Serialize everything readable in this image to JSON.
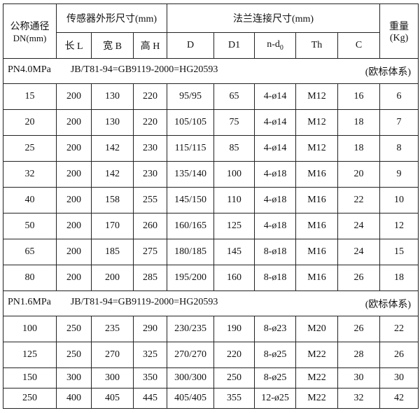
{
  "header": {
    "dn": "公称通径",
    "dn_unit": "DN(mm)",
    "sensor": "传感器外形尺寸(mm)",
    "flange": "法兰连接尺寸(mm)",
    "weight": "重量",
    "weight_unit": "(Kg)",
    "cols": [
      "长 L",
      "宽 B",
      "高 H",
      "D",
      "D1",
      "n-d",
      "Th",
      "C"
    ],
    "nd_sub": "0"
  },
  "sections": [
    {
      "pressure": "PN4.0MPa",
      "standard": "JB/T81-94=GB9119-2000=HG20593",
      "system": "(欧标体系)",
      "rows": [
        [
          "15",
          "200",
          "130",
          "220",
          "95/95",
          "65",
          "4-ø14",
          "M12",
          "16",
          "6"
        ],
        [
          "20",
          "200",
          "130",
          "220",
          "105/105",
          "75",
          "4-ø14",
          "M12",
          "18",
          "7"
        ],
        [
          "25",
          "200",
          "142",
          "230",
          "115/115",
          "85",
          "4-ø14",
          "M12",
          "18",
          "8"
        ],
        [
          "32",
          "200",
          "142",
          "230",
          "135/140",
          "100",
          "4-ø18",
          "M16",
          "20",
          "9"
        ],
        [
          "40",
          "200",
          "158",
          "255",
          "145/150",
          "110",
          "4-ø18",
          "M16",
          "22",
          "10"
        ],
        [
          "50",
          "200",
          "170",
          "260",
          "160/165",
          "125",
          "4-ø18",
          "M16",
          "24",
          "12"
        ],
        [
          "65",
          "200",
          "185",
          "275",
          "180/185",
          "145",
          "8-ø18",
          "M16",
          "24",
          "15"
        ],
        [
          "80",
          "200",
          "200",
          "285",
          "195/200",
          "160",
          "8-ø18",
          "M16",
          "26",
          "18"
        ]
      ]
    },
    {
      "pressure": "PN1.6MPa",
      "standard": "JB/T81-94=GB9119-2000=HG20593",
      "system": "(欧标体系)",
      "rows": [
        [
          "100",
          "250",
          "235",
          "290",
          "230/235",
          "190",
          "8-ø23",
          "M20",
          "26",
          "22"
        ],
        [
          "125",
          "250",
          "270",
          "325",
          "270/270",
          "220",
          "8-ø25",
          "M22",
          "28",
          "26"
        ],
        [
          "150",
          "300",
          "300",
          "350",
          "300/300",
          "250",
          "8-ø25",
          "M22",
          "30",
          "30"
        ],
        [
          "250",
          "400",
          "405",
          "445",
          "405/405",
          "355",
          "12-ø25",
          "M22",
          "32",
          "42"
        ]
      ]
    }
  ]
}
